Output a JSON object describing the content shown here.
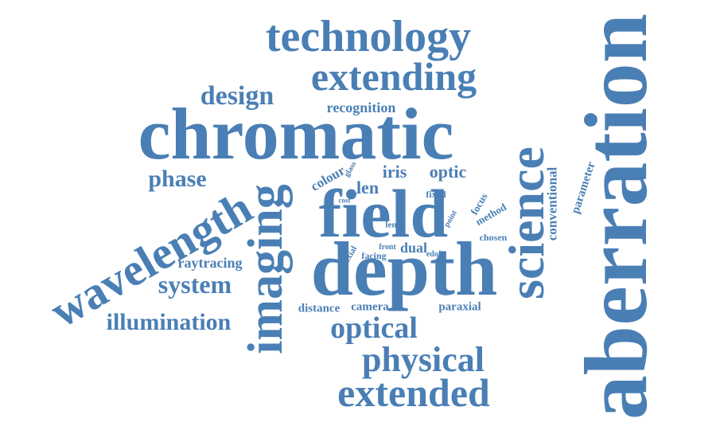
{
  "color": "#4a7fb5",
  "words": {
    "aberration": "aberration",
    "chromatic": "chromatic",
    "depth": "depth",
    "field": "field",
    "wavelength": "wavelength",
    "science": "science",
    "imaging": "imaging",
    "technology": "technology",
    "extending": "extending",
    "extended": "extended",
    "physical": "physical",
    "optical": "optical",
    "system": "system",
    "illumination": "illumination",
    "design": "design",
    "phase": "phase",
    "recognition": "recognition",
    "iris": "iris",
    "optic": "optic",
    "len": "len",
    "colour": "colour",
    "glass": "glass",
    "cost": "cost",
    "fixed": "fixed",
    "focus": "focus",
    "method": "method",
    "conventional": "conventional",
    "parameter": "parameter",
    "chosen": "chosen",
    "lense": "lense",
    "point": "point",
    "dual": "dual",
    "edof": "edof",
    "front": "front",
    "facing": "facing",
    "axial": "axial",
    "raytracing": "raytracing",
    "distance": "distance",
    "camera": "camera",
    "paraxial": "paraxial"
  }
}
